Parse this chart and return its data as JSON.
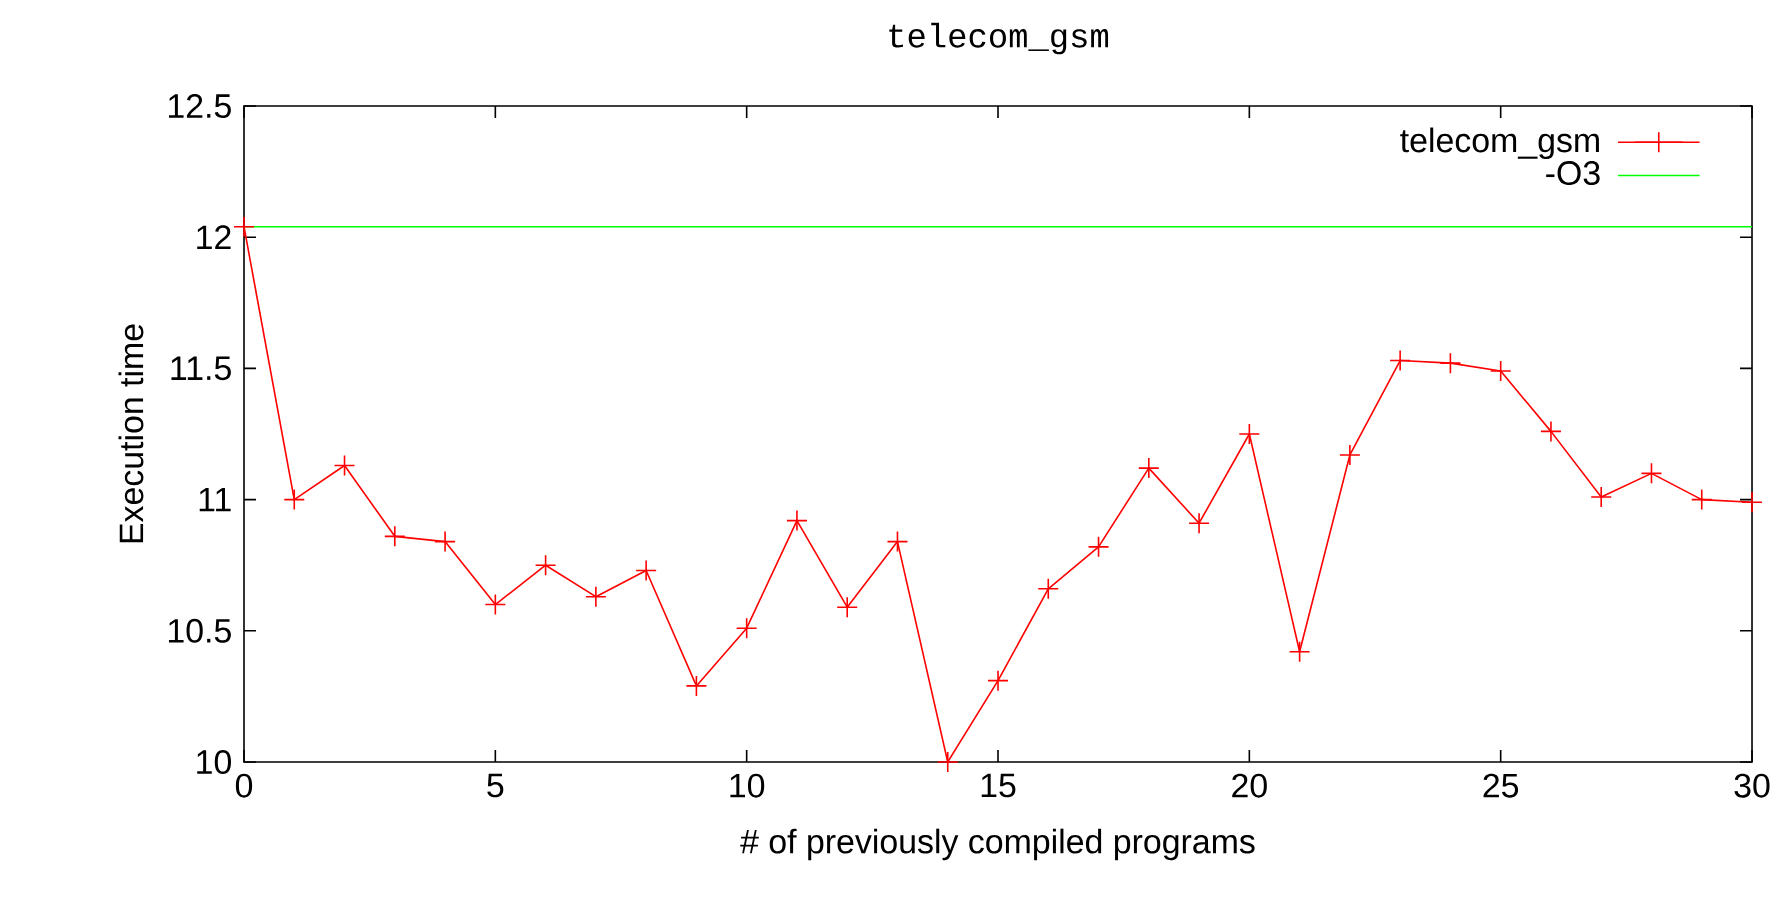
{
  "chart_data": {
    "type": "line",
    "title": "telecom_gsm",
    "xlabel": "# of previously compiled programs",
    "ylabel": "Execution time",
    "x": [
      0,
      1,
      2,
      3,
      4,
      5,
      6,
      7,
      8,
      9,
      10,
      11,
      12,
      13,
      14,
      15,
      16,
      17,
      18,
      19,
      20,
      21,
      22,
      23,
      24,
      25,
      26,
      27,
      28,
      29,
      30
    ],
    "series": [
      {
        "name": "telecom_gsm",
        "color": "#ff0000",
        "values": [
          12.04,
          11.0,
          11.13,
          10.86,
          10.84,
          10.6,
          10.75,
          10.63,
          10.73,
          10.29,
          10.51,
          10.92,
          10.59,
          10.84,
          10.0,
          10.31,
          10.66,
          10.82,
          11.12,
          10.91,
          11.25,
          10.42,
          11.17,
          11.53,
          11.52,
          11.49,
          11.26,
          11.01,
          11.1,
          11.0,
          10.99
        ]
      }
    ],
    "ref_lines": [
      {
        "axis": "y",
        "value": 12.04,
        "label": "-O3",
        "color": "#00ff00"
      }
    ],
    "xlim": [
      0,
      30
    ],
    "ylim": [
      10,
      12.5
    ],
    "xticks": [
      0,
      5,
      10,
      15,
      20,
      25,
      30
    ],
    "yticks": [
      10,
      10.5,
      11,
      11.5,
      12,
      12.5
    ],
    "grid": false,
    "legend": "top right",
    "marker": "cross",
    "line_style": "solid"
  }
}
